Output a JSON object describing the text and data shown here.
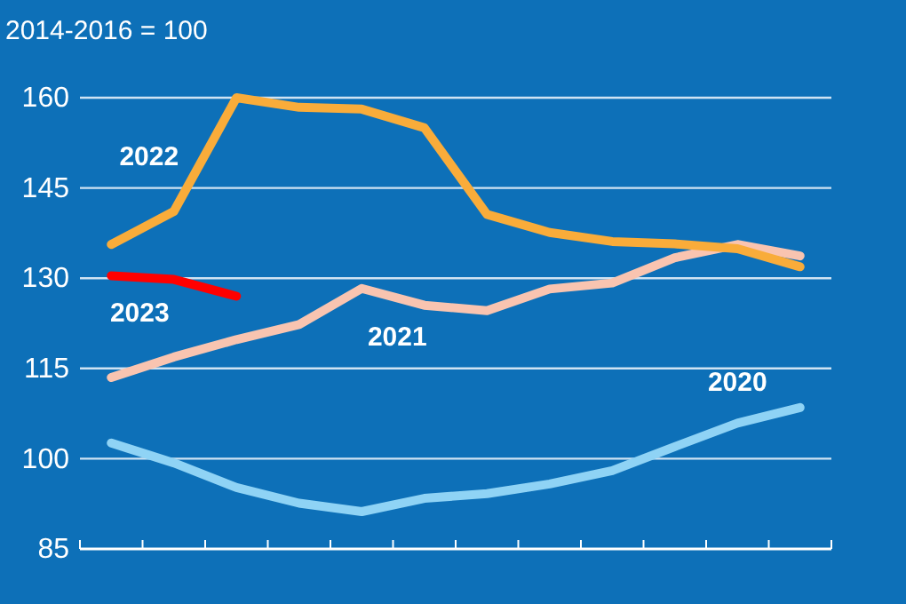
{
  "chart_data": {
    "type": "line",
    "title": "2014-2016 = 100",
    "categories": [
      null,
      null,
      null,
      null,
      null,
      null,
      null,
      null,
      null,
      null,
      null,
      null
    ],
    "ylim": [
      85,
      160
    ],
    "yticks": [
      85,
      100,
      115,
      130,
      145,
      160
    ],
    "grid": "y",
    "legend": false,
    "line_style": "solid",
    "marker": "none",
    "series": [
      {
        "name": "2020",
        "color": "#8fd3f5",
        "values": [
          102.6,
          99.3,
          95.2,
          92.6,
          91.2,
          93.4,
          94.2,
          95.8,
          98.0,
          102.0,
          105.9,
          108.5
        ]
      },
      {
        "name": "2021",
        "color": "#f9c4b0",
        "values": [
          113.5,
          116.9,
          119.8,
          122.3,
          128.3,
          125.5,
          124.6,
          128.2,
          129.2,
          133.4,
          135.6,
          133.7
        ]
      },
      {
        "name": "2022",
        "color": "#f9ac3a",
        "values": [
          135.6,
          141.1,
          160,
          158.4,
          158.1,
          155.0,
          140.6,
          137.6,
          136.1,
          135.7,
          134.9,
          131.9
        ]
      },
      {
        "name": "2023",
        "color": "#ff0000",
        "values": [
          130.4,
          129.8,
          127.0,
          null,
          null,
          null,
          null,
          null,
          null,
          null,
          null,
          null
        ]
      }
    ]
  }
}
